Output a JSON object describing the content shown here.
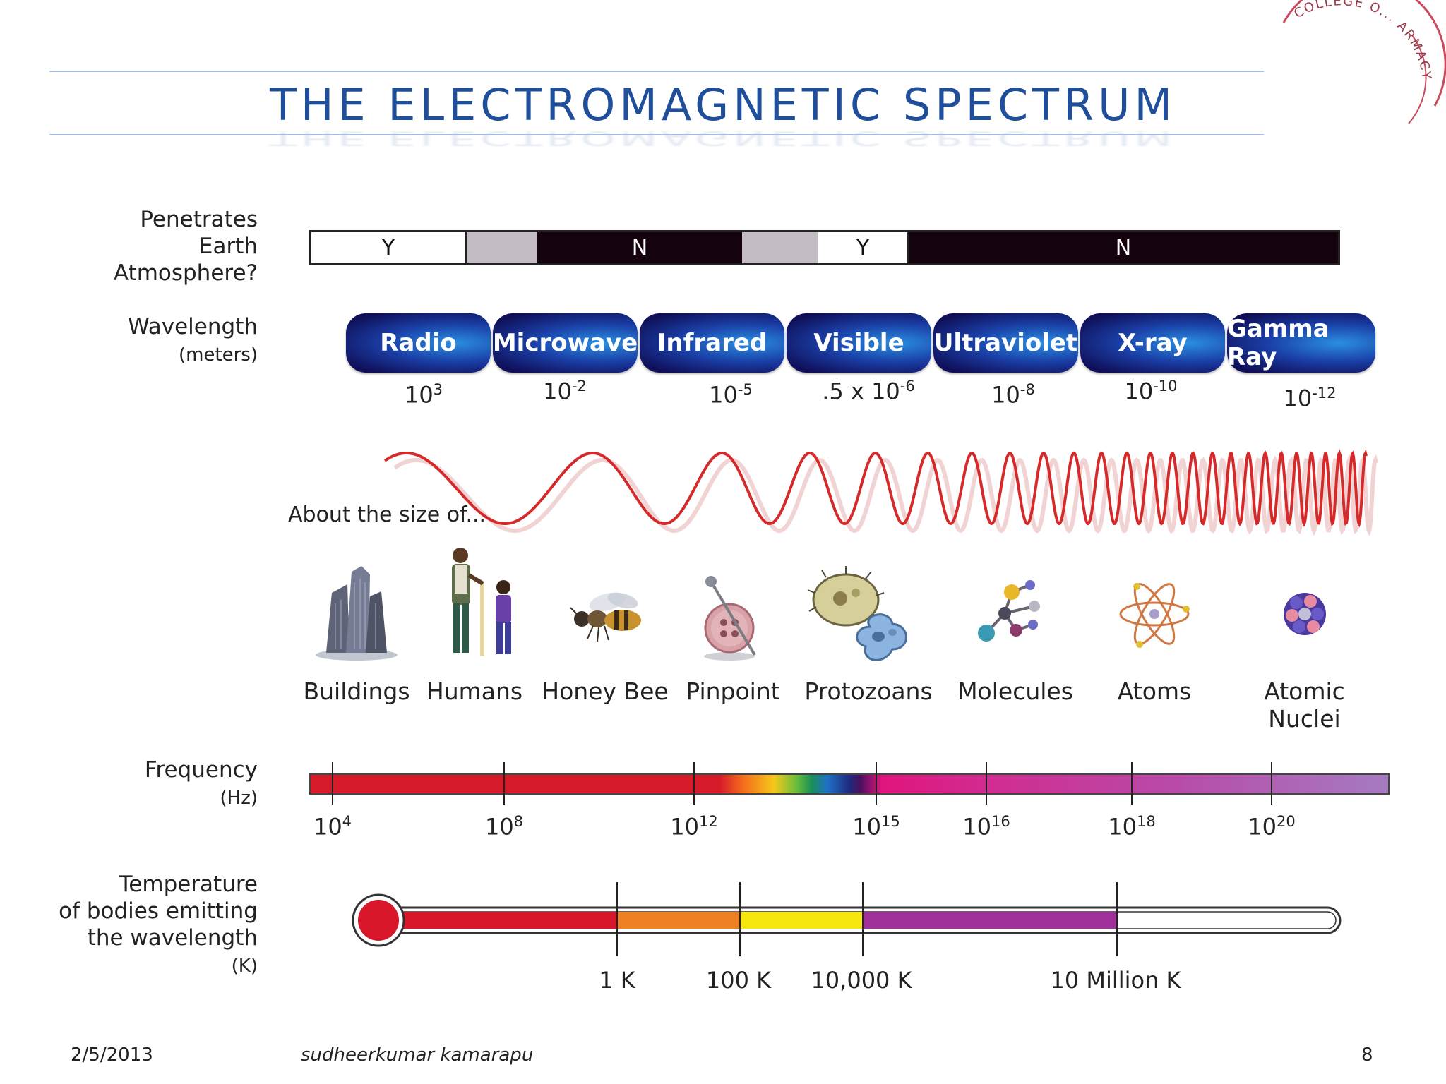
{
  "slide": {
    "title": "THE ELECTROMAGNETIC SPECTRUM",
    "date": "2/5/2013",
    "author": "sudheerkumar kamarapu",
    "page_number": "8",
    "logo_text": "COLLEGE O... ARMACY"
  },
  "labels": {
    "penetrates": [
      "Penetrates",
      "Earth",
      "Atmosphere?"
    ],
    "wavelength": "Wavelength",
    "wavelength_unit": "(meters)",
    "about_size": "About the size of...",
    "frequency": "Frequency",
    "frequency_unit": "(Hz)",
    "temperature": [
      "Temperature",
      "of bodies emitting",
      "the wavelength"
    ],
    "temperature_unit": "(K)"
  },
  "penetration": [
    "Y",
    "",
    "N",
    "",
    "Y",
    "N"
  ],
  "bands": [
    "Radio",
    "Microwave",
    "Infrared",
    "Visible",
    "Ultraviolet",
    "X-ray",
    "Gamma Ray"
  ],
  "wavelengths": [
    {
      "base": "10",
      "exp": "3"
    },
    {
      "base": "10",
      "exp": "-2"
    },
    {
      "base": "10",
      "exp": "-5"
    },
    {
      "base": ".5 x 10",
      "exp": "-6"
    },
    {
      "base": "10",
      "exp": "-8"
    },
    {
      "base": "10",
      "exp": "-10"
    },
    {
      "base": "10",
      "exp": "-12"
    }
  ],
  "objects": [
    "Buildings",
    "Humans",
    "Honey Bee",
    "Pinpoint",
    "Protozoans",
    "Molecules",
    "Atoms",
    "Atomic Nuclei"
  ],
  "frequencies": [
    {
      "base": "10",
      "exp": "4"
    },
    {
      "base": "10",
      "exp": "8"
    },
    {
      "base": "10",
      "exp": "12"
    },
    {
      "base": "10",
      "exp": "15"
    },
    {
      "base": "10",
      "exp": "16"
    },
    {
      "base": "10",
      "exp": "18"
    },
    {
      "base": "10",
      "exp": "20"
    }
  ],
  "temperatures": [
    "1 K",
    "100 K",
    "10,000 K",
    "10 Million K"
  ],
  "colors": {
    "title": "#1f4e9a",
    "wave": "#d62a2a",
    "band": "#1a3fa6"
  }
}
